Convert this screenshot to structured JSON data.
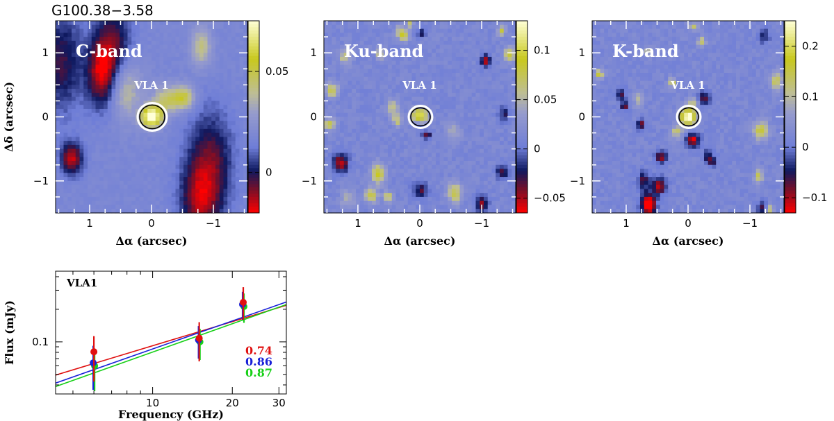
{
  "figure_title": "G100.38−3.58",
  "chart_data": [
    {
      "type": "heatmap",
      "band_label": "C-band",
      "source_label": "VLA 1",
      "xlabel": "Δα (arcsec)",
      "ylabel": "Δδ (arcsec)",
      "xlim": [
        1.55,
        -1.55
      ],
      "ylim": [
        -1.5,
        1.5
      ],
      "xticks": [
        1,
        0,
        -1
      ],
      "yticks": [
        1,
        0,
        -1
      ],
      "xtick_labels": [
        "1",
        "0",
        "−1"
      ],
      "ytick_labels": [
        "1",
        "0",
        "−1"
      ],
      "colorbar": {
        "vmin": -0.02,
        "vmax": 0.075,
        "ticks": [
          0,
          0.05
        ],
        "tick_labels": [
          "0",
          "0.05"
        ]
      },
      "source_peak_offset_arcsec": [
        0,
        0
      ],
      "seed": 11,
      "blob_size": "large"
    },
    {
      "type": "heatmap",
      "band_label": "Ku-band",
      "source_label": "VLA 1",
      "xlabel": "Δα (arcsec)",
      "ylabel": "",
      "xlim": [
        1.55,
        -1.55
      ],
      "ylim": [
        -1.5,
        1.5
      ],
      "xticks": [
        1,
        0,
        -1
      ],
      "yticks": [
        1,
        0,
        -1
      ],
      "xtick_labels": [
        "1",
        "0",
        "−1"
      ],
      "ytick_labels": [
        "1",
        "0",
        "−1"
      ],
      "colorbar": {
        "vmin": -0.065,
        "vmax": 0.13,
        "ticks": [
          -0.05,
          0,
          0.05,
          0.1
        ],
        "tick_labels": [
          "−0.05",
          "0",
          "0.05",
          "0.1"
        ]
      },
      "source_peak_offset_arcsec": [
        0,
        0
      ],
      "seed": 29,
      "blob_size": "small"
    },
    {
      "type": "heatmap",
      "band_label": "K-band",
      "source_label": "VLA 1",
      "xlabel": "Δα (arcsec)",
      "ylabel": "",
      "xlim": [
        1.55,
        -1.55
      ],
      "ylim": [
        -1.5,
        1.5
      ],
      "xticks": [
        1,
        0,
        -1
      ],
      "yticks": [
        1,
        0,
        -1
      ],
      "xtick_labels": [
        "1",
        "0",
        "−1"
      ],
      "ytick_labels": [
        "1",
        "0",
        "−1"
      ],
      "colorbar": {
        "vmin": -0.13,
        "vmax": 0.25,
        "ticks": [
          -0.1,
          0,
          0.1,
          0.2
        ],
        "tick_labels": [
          "−0.1",
          "0",
          "0.1",
          "0.2"
        ]
      },
      "source_peak_offset_arcsec": [
        0,
        0
      ],
      "seed": 47,
      "blob_size": "small"
    },
    {
      "type": "scatter",
      "scale": "log-log",
      "label": "VLA1",
      "xlabel": "Frequency (GHz)",
      "ylabel": "Flux (mJy)",
      "xlim": [
        4.3,
        32
      ],
      "ylim": [
        0.033,
        0.45
      ],
      "xtick_labels": [
        "10",
        "20",
        "30"
      ],
      "xticks": [
        10,
        20,
        30
      ],
      "ytick_labels": [
        "0.1"
      ],
      "yticks": [
        0.1
      ],
      "points": [
        {
          "x": 6,
          "y": 0.081,
          "yerr": [
            0.043,
            0.113
          ],
          "color": "#e01010"
        },
        {
          "x": 15,
          "y": 0.108,
          "yerr": [
            0.066,
            0.152
          ],
          "color": "#e01010"
        },
        {
          "x": 22,
          "y": 0.232,
          "yerr": [
            0.16,
            0.32
          ],
          "color": "#e01010"
        },
        {
          "x": 6,
          "y": 0.064,
          "yerr": [
            0.036,
            0.092
          ],
          "color": "#1820d8"
        },
        {
          "x": 15,
          "y": 0.104,
          "yerr": [
            0.07,
            0.14
          ],
          "color": "#1820d8"
        },
        {
          "x": 22,
          "y": 0.222,
          "yerr": [
            0.16,
            0.29
          ],
          "color": "#1820d8"
        },
        {
          "x": 6,
          "y": 0.06,
          "yerr": [
            0.035,
            0.085
          ],
          "color": "#18d018"
        },
        {
          "x": 15,
          "y": 0.1,
          "yerr": [
            0.068,
            0.132
          ],
          "color": "#18d018"
        },
        {
          "x": 22,
          "y": 0.212,
          "yerr": [
            0.15,
            0.28
          ],
          "color": "#18d018"
        }
      ],
      "fits": [
        {
          "index": 0.74,
          "index_label": "0.74",
          "color": "#e01010",
          "y_at_x1": 0.0493,
          "x1": 4.3
        },
        {
          "index": 0.86,
          "index_label": "0.86",
          "color": "#1820d8",
          "y_at_x1": 0.0416,
          "x1": 4.3
        },
        {
          "index": 0.87,
          "index_label": "0.87",
          "color": "#18d018",
          "y_at_x1": 0.0386,
          "x1": 4.3
        }
      ]
    }
  ]
}
